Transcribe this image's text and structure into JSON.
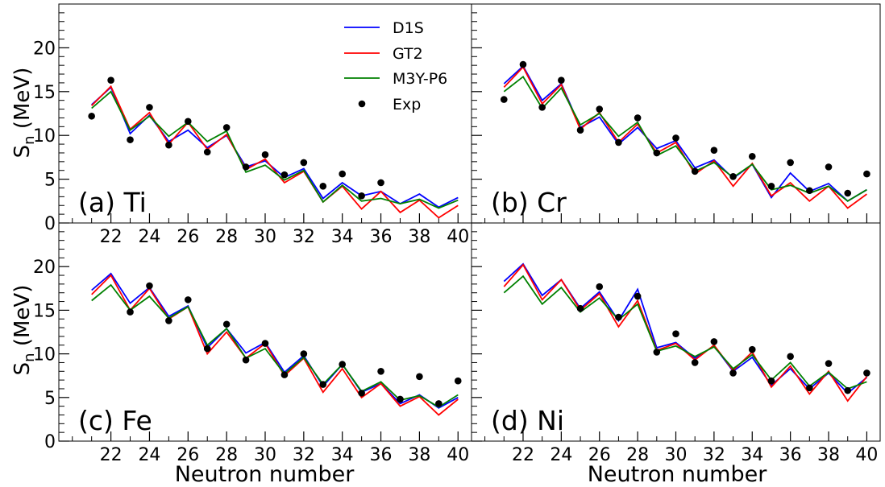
{
  "figure": {
    "ylabel": "S",
    "ylabel_sub": "n",
    "ylabel_unit": " (MeV)",
    "xlabel": "Neutron number"
  },
  "legend": {
    "entries": [
      {
        "label": "D1S",
        "color": "#0000ff",
        "kind": "line"
      },
      {
        "label": "GT2",
        "color": "#ff0000",
        "kind": "line"
      },
      {
        "label": "M3Y-P6",
        "color": "#008000",
        "kind": "line"
      },
      {
        "label": "Exp",
        "color": "#000000",
        "kind": "marker"
      }
    ]
  },
  "chart_data": [
    {
      "type": "line",
      "panel_label": "(a) Ti",
      "x": [
        21,
        22,
        23,
        24,
        25,
        26,
        27,
        28,
        29,
        30,
        31,
        32,
        33,
        34,
        35,
        36,
        37,
        38,
        39,
        40
      ],
      "xlim": [
        19.3,
        40.7
      ],
      "ylim": [
        0,
        25
      ],
      "xticks": [
        22,
        24,
        26,
        28,
        30,
        32,
        34,
        36,
        38,
        40
      ],
      "yticks": [
        0,
        5,
        10,
        15,
        20
      ],
      "show_xticklabels": true,
      "show_yticklabels": true,
      "series": [
        {
          "name": "D1S",
          "color": "#0000ff",
          "values": [
            13.5,
            15.5,
            10.2,
            12.3,
            9.3,
            10.6,
            8.6,
            10.0,
            6.4,
            7.1,
            5.2,
            6.2,
            2.8,
            4.6,
            3.1,
            3.6,
            2.2,
            3.3,
            1.8,
            2.9
          ]
        },
        {
          "name": "GT2",
          "color": "#ff0000",
          "values": [
            13.4,
            15.6,
            10.7,
            12.6,
            9.0,
            11.5,
            8.4,
            10.1,
            6.1,
            7.3,
            4.6,
            5.9,
            2.4,
            4.2,
            1.6,
            3.6,
            1.2,
            2.6,
            0.6,
            2.0
          ]
        },
        {
          "name": "M3Y-P6",
          "color": "#008000",
          "values": [
            13.1,
            15.0,
            10.6,
            12.2,
            9.9,
            11.5,
            9.3,
            10.5,
            5.8,
            6.6,
            4.9,
            6.0,
            2.4,
            4.3,
            2.5,
            2.8,
            2.2,
            2.7,
            1.7,
            2.6
          ]
        },
        {
          "name": "Exp",
          "color": "#000000",
          "kind": "scatter",
          "values": [
            12.2,
            16.3,
            9.5,
            13.2,
            8.9,
            11.6,
            8.1,
            10.9,
            6.4,
            7.8,
            5.5,
            6.9,
            4.2,
            5.6,
            3.1,
            4.6
          ]
        }
      ]
    },
    {
      "type": "line",
      "panel_label": "(b) Cr",
      "x": [
        21,
        22,
        23,
        24,
        25,
        26,
        27,
        28,
        29,
        30,
        31,
        32,
        33,
        34,
        35,
        36,
        37,
        38,
        39,
        40
      ],
      "xlim": [
        19.3,
        40.7
      ],
      "ylim": [
        0,
        25
      ],
      "xticks": [
        22,
        24,
        26,
        28,
        30,
        32,
        34,
        36,
        38,
        40
      ],
      "yticks": [
        0,
        5,
        10,
        15,
        20
      ],
      "show_xticklabels": false,
      "show_yticklabels": false,
      "series": [
        {
          "name": "D1S",
          "color": "#0000ff",
          "values": [
            15.9,
            17.9,
            14.0,
            15.9,
            10.9,
            12.1,
            9.0,
            10.9,
            8.5,
            9.4,
            6.3,
            7.2,
            5.1,
            6.7,
            2.9,
            5.7,
            3.6,
            4.5,
            2.5,
            3.8
          ]
        },
        {
          "name": "GT2",
          "color": "#ff0000",
          "values": [
            15.5,
            17.8,
            13.6,
            15.8,
            10.7,
            12.6,
            9.2,
            11.3,
            8.0,
            9.2,
            5.6,
            7.1,
            4.2,
            6.8,
            3.1,
            4.6,
            2.5,
            4.2,
            1.7,
            3.3
          ]
        },
        {
          "name": "M3Y-P6",
          "color": "#008000",
          "values": [
            15.0,
            16.7,
            13.1,
            15.4,
            11.2,
            12.5,
            9.9,
            11.5,
            7.7,
            8.8,
            5.9,
            6.9,
            5.2,
            6.7,
            3.8,
            4.3,
            3.4,
            4.2,
            2.5,
            3.8
          ]
        },
        {
          "name": "Exp",
          "color": "#000000",
          "kind": "scatter",
          "values": [
            14.1,
            18.1,
            13.2,
            16.3,
            10.6,
            13.0,
            9.2,
            12.0,
            8.0,
            9.7,
            5.9,
            8.3,
            5.3,
            7.6,
            4.2,
            6.9,
            3.7,
            6.4,
            3.4,
            5.6
          ]
        }
      ]
    },
    {
      "type": "line",
      "panel_label": "(c) Fe",
      "x": [
        21,
        22,
        23,
        24,
        25,
        26,
        27,
        28,
        29,
        30,
        31,
        32,
        33,
        34,
        35,
        36,
        37,
        38,
        39,
        40
      ],
      "xlim": [
        19.3,
        40.7
      ],
      "ylim": [
        0,
        25
      ],
      "xticks": [
        22,
        24,
        26,
        28,
        30,
        32,
        34,
        36,
        38,
        40
      ],
      "yticks": [
        0,
        5,
        10,
        15,
        20
      ],
      "show_xticklabels": true,
      "show_yticklabels": true,
      "series": [
        {
          "name": "D1S",
          "color": "#0000ff",
          "values": [
            17.3,
            19.2,
            15.8,
            17.6,
            14.3,
            15.5,
            10.7,
            12.9,
            10.1,
            11.3,
            7.9,
            9.8,
            6.3,
            8.8,
            5.6,
            6.6,
            4.3,
            5.3,
            3.8,
            5.0
          ]
        },
        {
          "name": "GT2",
          "color": "#ff0000",
          "values": [
            16.8,
            19.0,
            15.0,
            17.5,
            14.0,
            15.4,
            10.0,
            12.5,
            9.5,
            11.2,
            7.5,
            9.5,
            5.6,
            8.3,
            5.0,
            6.6,
            4.0,
            5.1,
            3.0,
            4.8
          ]
        },
        {
          "name": "M3Y-P6",
          "color": "#008000",
          "values": [
            16.1,
            17.9,
            15.0,
            16.6,
            14.1,
            15.4,
            11.0,
            12.9,
            9.5,
            10.6,
            7.7,
            9.6,
            6.5,
            8.8,
            5.7,
            6.8,
            4.7,
            5.2,
            3.9,
            5.3
          ]
        },
        {
          "name": "Exp",
          "color": "#000000",
          "kind": "scatter",
          "values": [
            null,
            null,
            14.8,
            17.8,
            13.8,
            16.2,
            10.6,
            13.4,
            9.3,
            11.2,
            7.6,
            10.0,
            6.5,
            8.8,
            5.5,
            8.0,
            4.8,
            7.4,
            4.3,
            6.9
          ]
        }
      ]
    },
    {
      "type": "line",
      "panel_label": "(d) Ni",
      "x": [
        21,
        22,
        23,
        24,
        25,
        26,
        27,
        28,
        29,
        30,
        31,
        32,
        33,
        34,
        35,
        36,
        37,
        38,
        39,
        40
      ],
      "xlim": [
        19.3,
        40.7
      ],
      "ylim": [
        0,
        25
      ],
      "xticks": [
        22,
        24,
        26,
        28,
        30,
        32,
        34,
        36,
        38,
        40
      ],
      "yticks": [
        0,
        5,
        10,
        15,
        20
      ],
      "show_xticklabels": true,
      "show_yticklabels": false,
      "series": [
        {
          "name": "D1S",
          "color": "#0000ff",
          "values": [
            18.3,
            20.3,
            16.7,
            18.5,
            15.2,
            17.1,
            13.8,
            17.4,
            10.7,
            11.3,
            9.5,
            10.9,
            8.0,
            9.6,
            6.4,
            8.3,
            6.0,
            7.8,
            5.5,
            7.3
          ]
        },
        {
          "name": "GT2",
          "color": "#ff0000",
          "values": [
            17.7,
            20.2,
            16.2,
            18.5,
            15.0,
            16.9,
            13.1,
            16.1,
            10.4,
            11.2,
            9.3,
            11.0,
            8.1,
            10.2,
            6.2,
            8.6,
            5.4,
            8.0,
            4.6,
            7.4
          ]
        },
        {
          "name": "M3Y-P6",
          "color": "#008000",
          "values": [
            17.0,
            18.9,
            15.7,
            17.6,
            14.8,
            16.4,
            13.9,
            15.7,
            10.3,
            10.9,
            9.7,
            10.8,
            8.3,
            9.9,
            7.0,
            9.0,
            6.3,
            7.9,
            6.0,
            6.8
          ]
        },
        {
          "name": "Exp",
          "color": "#000000",
          "kind": "scatter",
          "values": [
            null,
            null,
            null,
            null,
            15.2,
            17.7,
            14.2,
            16.6,
            10.2,
            12.3,
            9.0,
            11.4,
            7.8,
            10.5,
            6.9,
            9.7,
            6.1,
            8.9,
            5.8,
            7.8
          ]
        }
      ]
    }
  ]
}
